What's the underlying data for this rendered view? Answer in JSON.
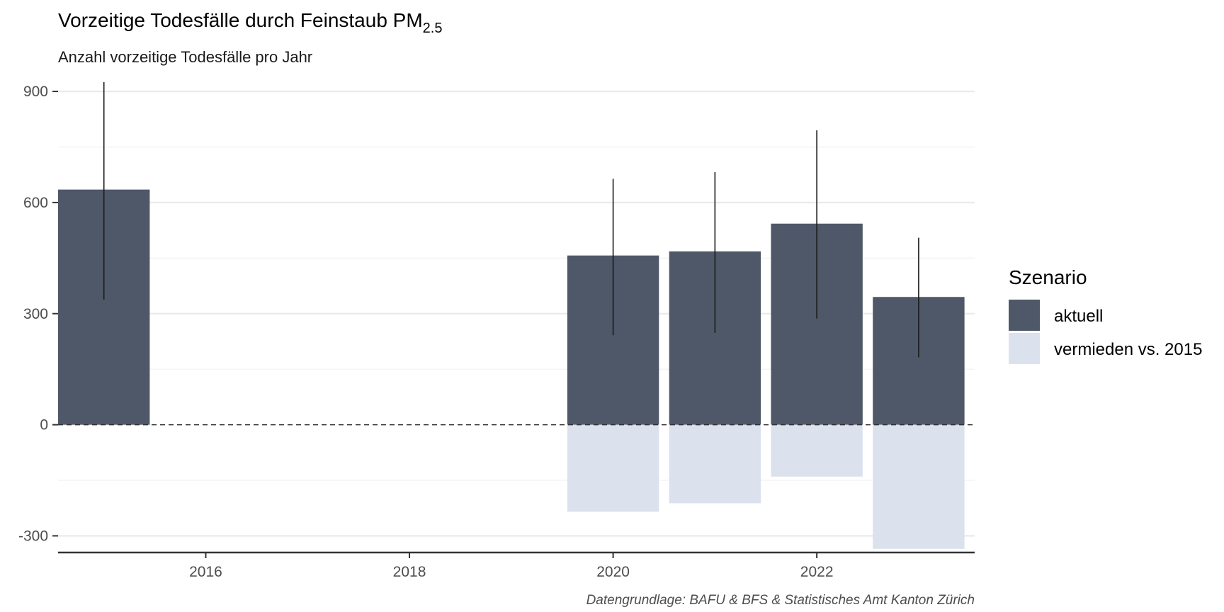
{
  "chart_data": {
    "type": "bar",
    "title": "Vorzeitige Todesfälle durch Feinstaub PM",
    "title_subscript": "2.5",
    "subtitle": "Anzahl vorzeitige Todesfälle pro Jahr",
    "caption": "Datengrundlage: BAFU & BFS & Statistisches Amt Kanton Zürich",
    "xlabel": "",
    "ylabel": "",
    "x_ticks": [
      2016,
      2018,
      2020,
      2022
    ],
    "y_ticks": [
      -300,
      0,
      300,
      600,
      900
    ],
    "ylim": [
      -345,
      925
    ],
    "xlim": [
      2014.55,
      2023.55
    ],
    "grid": true,
    "legend": {
      "title": "Szenario",
      "position": "right"
    },
    "series": [
      {
        "name": "aktuell",
        "color": "#4f5869",
        "points": [
          {
            "x": 2015,
            "value": 635,
            "error_low": 338,
            "error_high": 925
          },
          {
            "x": 2020,
            "value": 457,
            "error_low": 242,
            "error_high": 664
          },
          {
            "x": 2021,
            "value": 468,
            "error_low": 248,
            "error_high": 682
          },
          {
            "x": 2022,
            "value": 543,
            "error_low": 287,
            "error_high": 795
          },
          {
            "x": 2023,
            "value": 345,
            "error_low": 182,
            "error_high": 505
          }
        ]
      },
      {
        "name": "vermieden vs. 2015",
        "color": "#dce1ee",
        "points": [
          {
            "x": 2020,
            "value": -235
          },
          {
            "x": 2021,
            "value": -212
          },
          {
            "x": 2022,
            "value": -140
          },
          {
            "x": 2023,
            "value": -335
          }
        ]
      }
    ]
  }
}
